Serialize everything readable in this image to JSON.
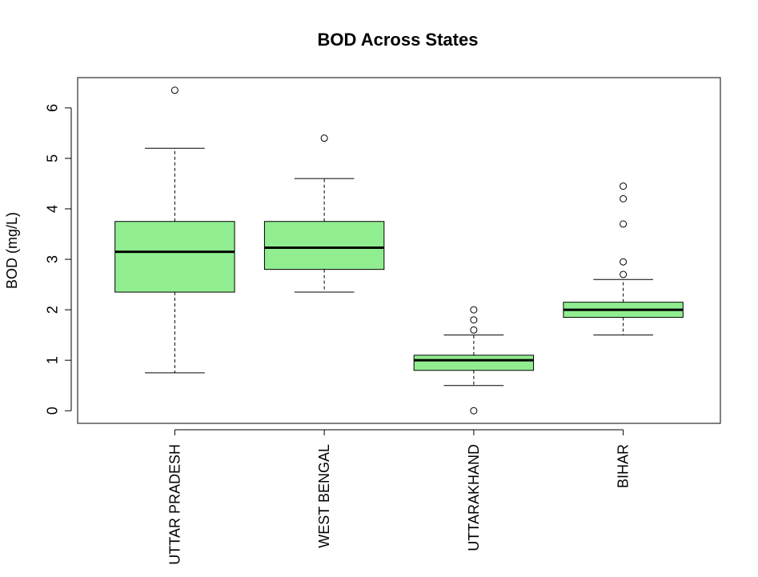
{
  "chart_data": {
    "type": "boxplot",
    "title": "BOD Across States",
    "xlabel": "",
    "ylabel": "BOD (mg/L)",
    "ylim": [
      -0.25,
      6.6
    ],
    "yticks": [
      0,
      1,
      2,
      3,
      4,
      5,
      6
    ],
    "box_color": "#90EE90",
    "categories": [
      "UTTAR PRADESH",
      "WEST BENGAL",
      "UTTARAKHAND",
      "BIHAR"
    ],
    "boxes": [
      {
        "category": "UTTAR PRADESH",
        "whisker_low": 0.75,
        "q1": 2.35,
        "median": 3.15,
        "q3": 3.75,
        "whisker_high": 5.2,
        "outliers": [
          6.35
        ]
      },
      {
        "category": "WEST BENGAL",
        "whisker_low": 2.35,
        "q1": 2.8,
        "median": 3.23,
        "q3": 3.75,
        "whisker_high": 4.6,
        "outliers": [
          5.4
        ]
      },
      {
        "category": "UTTARAKHAND",
        "whisker_low": 0.5,
        "q1": 0.8,
        "median": 1.0,
        "q3": 1.1,
        "whisker_high": 1.5,
        "outliers": [
          0.0,
          1.6,
          1.8,
          2.0
        ]
      },
      {
        "category": "BIHAR",
        "whisker_low": 1.5,
        "q1": 1.85,
        "median": 2.0,
        "q3": 2.15,
        "whisker_high": 2.6,
        "outliers": [
          2.7,
          2.95,
          3.7,
          4.2,
          4.45
        ]
      }
    ],
    "grid": false,
    "legend": "none"
  }
}
